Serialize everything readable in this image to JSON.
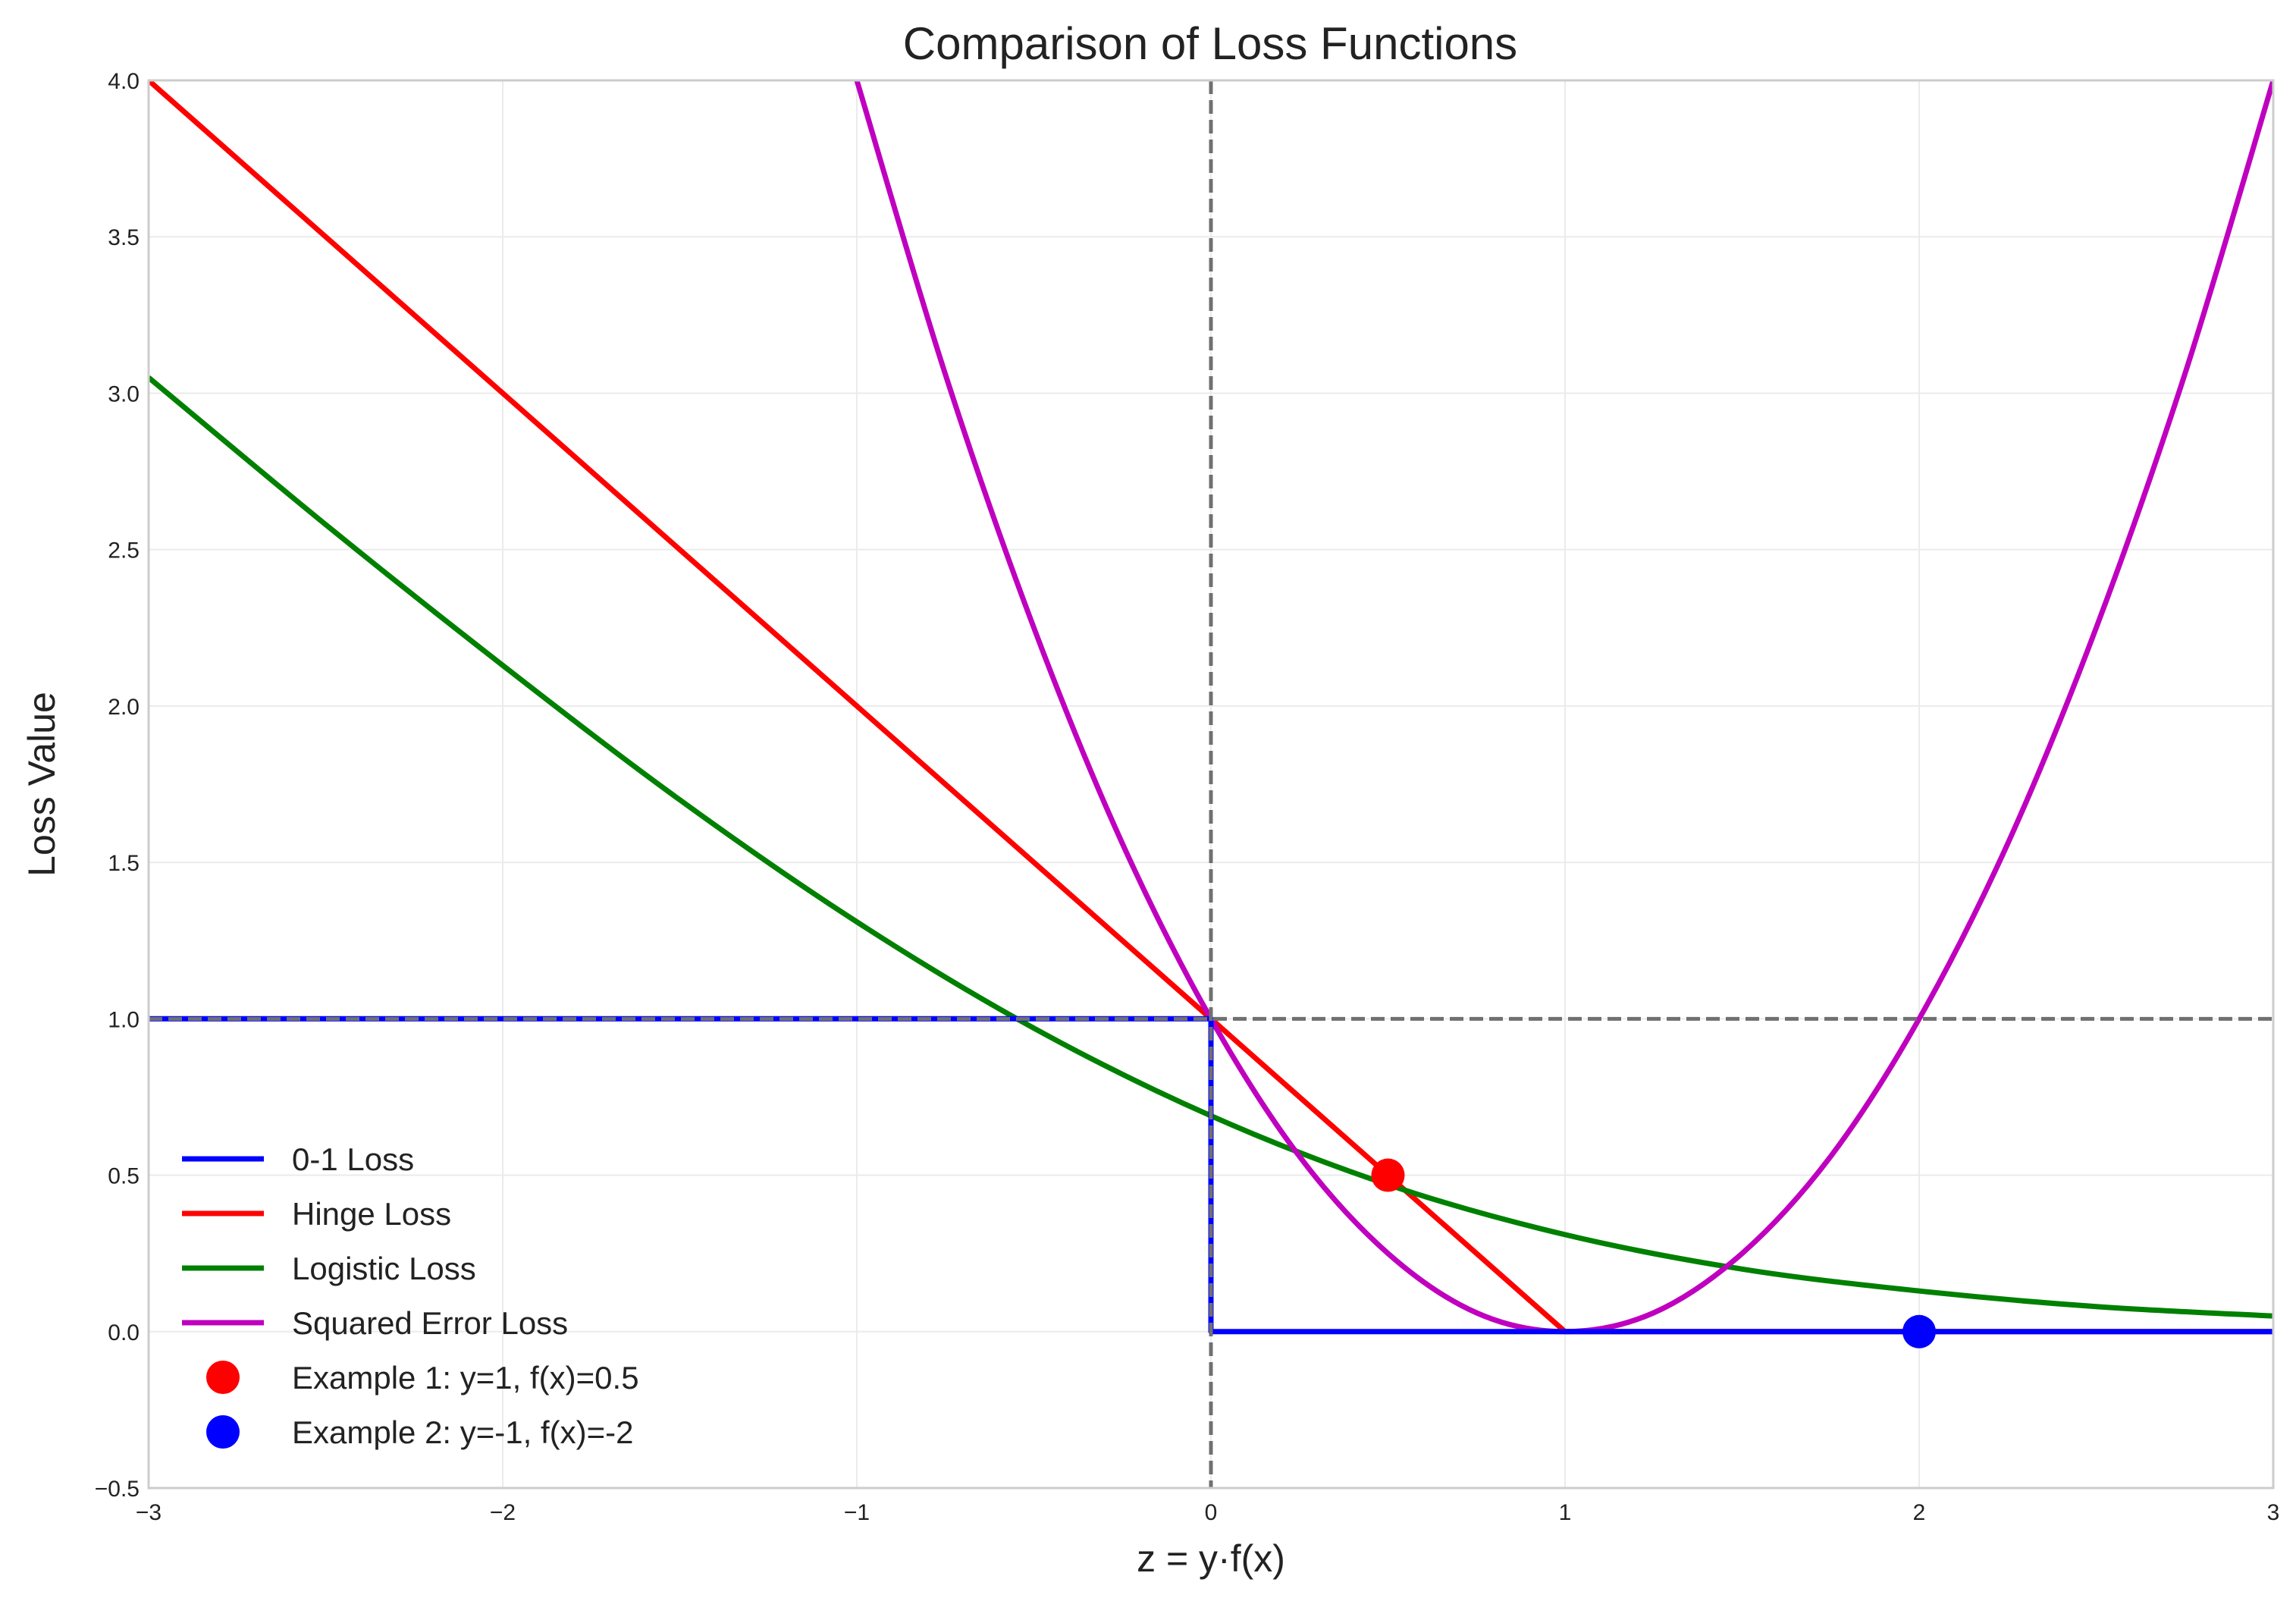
{
  "chart_data": {
    "type": "line",
    "title": "Comparison of Loss Functions",
    "xlabel": "z = y·f(x)",
    "ylabel": "Loss Value",
    "xlim": [
      -3,
      3
    ],
    "ylim": [
      -0.5,
      4.0
    ],
    "x_ticks": [
      -3,
      -2,
      -1,
      0,
      1,
      2,
      3
    ],
    "x_tick_labels": [
      "−3",
      "−2",
      "−1",
      "0",
      "1",
      "2",
      "3"
    ],
    "y_ticks": [
      -0.5,
      0.0,
      0.5,
      1.0,
      1.5,
      2.0,
      2.5,
      3.0,
      3.5,
      4.0
    ],
    "y_tick_labels": [
      "−0.5",
      "0.0",
      "0.5",
      "1.0",
      "1.5",
      "2.0",
      "2.5",
      "3.0",
      "3.5",
      "4.0"
    ],
    "grid": true,
    "legend_position": "lower-left",
    "series": [
      {
        "name": "0-1 Loss",
        "color": "#0000ff",
        "x": [
          -3,
          0,
          0,
          3
        ],
        "y": [
          1,
          1,
          0,
          0
        ]
      },
      {
        "name": "Hinge Loss",
        "color": "#ff0000",
        "x": [
          -3,
          -2,
          -1,
          0,
          1,
          2,
          3
        ],
        "y": [
          4,
          3,
          2,
          1,
          0,
          0,
          0
        ]
      },
      {
        "name": "Logistic Loss",
        "color": "#008000",
        "x": [
          -3,
          -2.5,
          -2,
          -1.5,
          -1,
          -0.5,
          0,
          0.5,
          1,
          1.5,
          2,
          2.5,
          3
        ],
        "y": [
          3.05,
          2.58,
          2.13,
          1.7,
          1.31,
          0.97,
          0.69,
          0.47,
          0.31,
          0.2,
          0.13,
          0.08,
          0.05
        ]
      },
      {
        "name": "Squared Error Loss",
        "color": "#bf00bf",
        "x": [
          -1.0,
          -0.75,
          -0.5,
          -0.25,
          0,
          0.25,
          0.5,
          0.75,
          1.0,
          1.25,
          1.5,
          1.75,
          2.0,
          2.25,
          2.5,
          2.75,
          3.0
        ],
        "y": [
          4.0,
          3.06,
          2.25,
          1.56,
          1.0,
          0.56,
          0.25,
          0.06,
          0.0,
          0.06,
          0.25,
          0.56,
          1.0,
          1.56,
          2.25,
          3.06,
          4.0
        ]
      }
    ],
    "points": [
      {
        "name": "Example 1: y=1, f(x)=0.5",
        "color": "#ff0000",
        "x": 0.5,
        "y": 0.5
      },
      {
        "name": "Example 2: y=-1, f(x)=-2",
        "color": "#0000ff",
        "x": 2,
        "y": 0
      }
    ],
    "reference_lines": [
      {
        "orientation": "vertical",
        "value": 0,
        "color": "#707070",
        "style": "dashed"
      },
      {
        "orientation": "horizontal",
        "value": 1,
        "color": "#707070",
        "style": "dashed"
      }
    ]
  }
}
